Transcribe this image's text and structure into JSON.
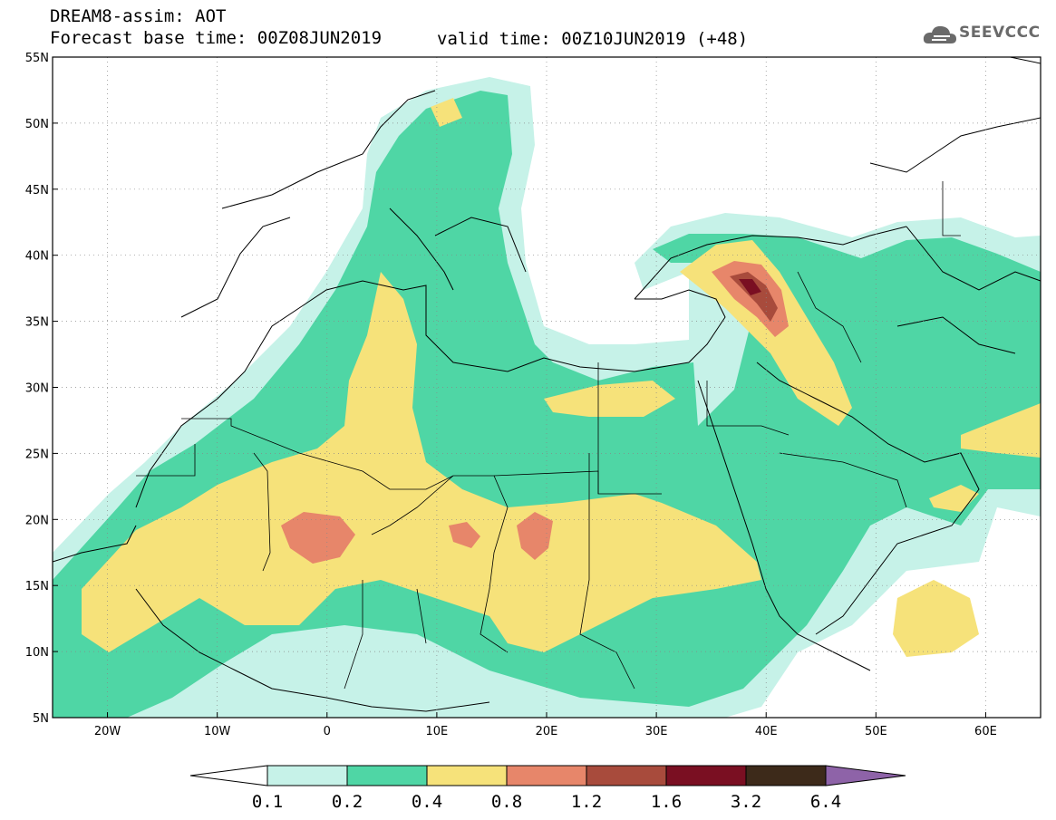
{
  "header": {
    "title": "DREAM8-assim: AOT",
    "base_time": "Forecast base time: 00Z08JUN2019",
    "valid_time": "valid time: 00Z10JUN2019 (+48)"
  },
  "logo": {
    "text": "SEEVCCC",
    "icon": "cloud-icon"
  },
  "axes": {
    "lat_labels": [
      "55N",
      "50N",
      "45N",
      "40N",
      "35N",
      "30N",
      "25N",
      "20N",
      "15N",
      "10N",
      "5N"
    ],
    "lat_values": [
      55,
      50,
      45,
      40,
      35,
      30,
      25,
      20,
      15,
      10,
      5
    ],
    "lon_labels": [
      "20W",
      "10W",
      "0",
      "10E",
      "20E",
      "30E",
      "40E",
      "50E",
      "60E"
    ],
    "lon_values": [
      -20,
      -10,
      0,
      10,
      20,
      30,
      40,
      50,
      60
    ],
    "lon_range": [
      -25,
      65
    ],
    "lat_range": [
      5,
      55
    ],
    "grid": "dotted"
  },
  "colorbar": {
    "labels": [
      "0.1",
      "0.2",
      "0.4",
      "0.8",
      "1.2",
      "1.6",
      "3.2",
      "6.4"
    ],
    "colors": [
      "#c6f2e8",
      "#4fd6a5",
      "#f6e27a",
      "#e7866a",
      "#a84b3c",
      "#7a0f22",
      "#3d2a1a"
    ],
    "under_color": "#ffffff",
    "over_color": "#8e63a8"
  },
  "field_colors": {
    "c1": "#c6f2e8",
    "c2": "#4fd6a5",
    "c3": "#f6e27a",
    "c4": "#e7866a",
    "c5": "#a84b3c",
    "c6": "#7a0f22"
  }
}
